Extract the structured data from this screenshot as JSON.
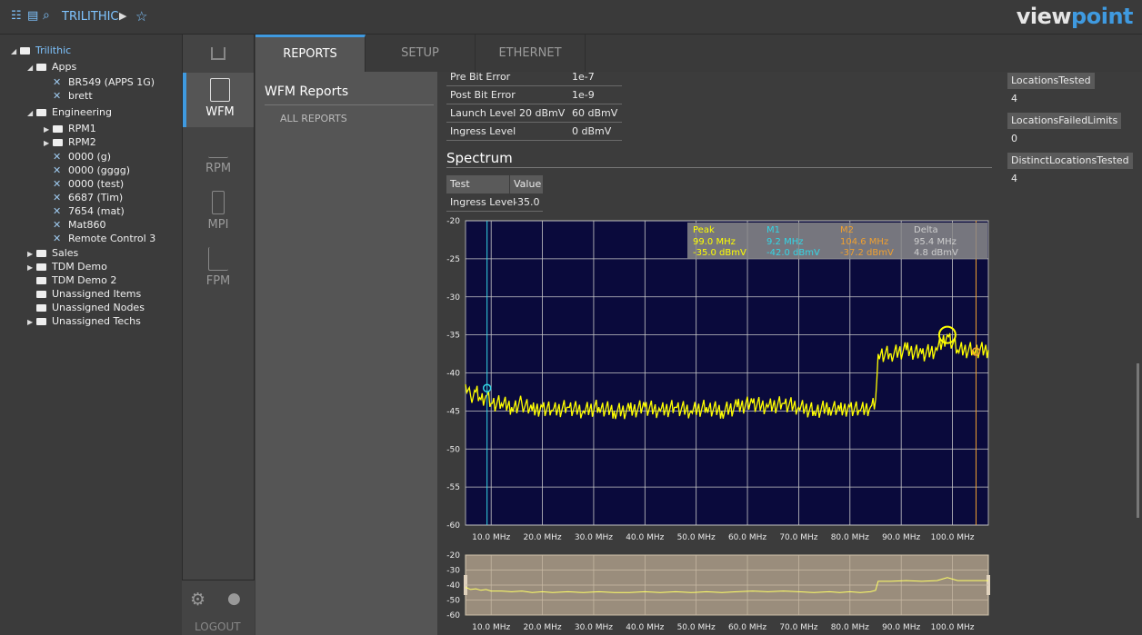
{
  "topbar": {
    "breadcrumb": "TRILITHIC",
    "logo_part1": "view",
    "logo_part2": "point"
  },
  "tree": [
    {
      "label": "Trilithic",
      "depth": 0,
      "type": "folder",
      "expanded": true,
      "selected": true
    },
    {
      "label": "Apps",
      "depth": 1,
      "type": "folder",
      "expanded": true
    },
    {
      "label": "BR549 (APPS 1G)",
      "depth": 2,
      "type": "device"
    },
    {
      "label": "brett",
      "depth": 2,
      "type": "device"
    },
    {
      "label": "Engineering",
      "depth": 1,
      "type": "folder",
      "expanded": true
    },
    {
      "label": "RPM1",
      "depth": 2,
      "type": "folder",
      "expanded": false
    },
    {
      "label": "RPM2",
      "depth": 2,
      "type": "folder",
      "expanded": false
    },
    {
      "label": "0000 (g)",
      "depth": 2,
      "type": "device"
    },
    {
      "label": "0000 (gggg)",
      "depth": 2,
      "type": "device"
    },
    {
      "label": "0000 (test)",
      "depth": 2,
      "type": "device"
    },
    {
      "label": "6687 (Tim)",
      "depth": 2,
      "type": "device"
    },
    {
      "label": "7654 (mat)",
      "depth": 2,
      "type": "device"
    },
    {
      "label": "Mat860",
      "depth": 2,
      "type": "device"
    },
    {
      "label": "Remote Control 3",
      "depth": 2,
      "type": "device"
    },
    {
      "label": "Sales",
      "depth": 1,
      "type": "folder",
      "expanded": false
    },
    {
      "label": "TDM Demo",
      "depth": 1,
      "type": "folder",
      "expanded": false
    },
    {
      "label": "TDM Demo 2",
      "depth": 1,
      "type": "folder",
      "leaf": true
    },
    {
      "label": "Unassigned Items",
      "depth": 1,
      "type": "folder",
      "leaf": true
    },
    {
      "label": "Unassigned Nodes",
      "depth": 1,
      "type": "folder",
      "leaf": true
    },
    {
      "label": "Unassigned Techs",
      "depth": 1,
      "type": "folder",
      "expanded": false
    }
  ],
  "sidenav": {
    "items": [
      "WFM",
      "RPM",
      "MPI",
      "FPM"
    ],
    "logout": "LOGOUT"
  },
  "tabs": [
    "REPORTS",
    "SETUP",
    "ETHERNET"
  ],
  "reports_panel": {
    "title": "WFM Reports",
    "all_reports": "ALL REPORTS"
  },
  "settings_rows": [
    {
      "name": "Pre Bit Error",
      "min": "",
      "max": "1e-7"
    },
    {
      "name": "Post Bit Error",
      "min": "",
      "max": "1e-9"
    },
    {
      "name": "Launch Level",
      "min": "20 dBmV",
      "max": "60 dBmV"
    },
    {
      "name": "Ingress Level",
      "min": "",
      "max": "0 dBmV"
    }
  ],
  "spectrum": {
    "title": "Spectrum",
    "table_headers": [
      "Test",
      "Value"
    ],
    "table_rows": [
      {
        "test": "Ingress Level",
        "value": "-35.0"
      }
    ]
  },
  "markers": {
    "peak": {
      "title": "Peak",
      "freq": "99.0 MHz",
      "level": "-35.0 dBmV",
      "color": "#ffff00"
    },
    "m1": {
      "title": "M1",
      "freq": "9.2 MHz",
      "level": "-42.0 dBmV",
      "color": "#33d6e6"
    },
    "m2": {
      "title": "M2",
      "freq": "104.6 MHz",
      "level": "-37.2 dBmV",
      "color": "#f0a030"
    },
    "delta": {
      "title": "Delta",
      "freq": "95.4 MHz",
      "level": "4.8 dBmV",
      "color": "#cfcfcf"
    }
  },
  "chart_data": {
    "type": "line",
    "xlim": [
      5,
      107
    ],
    "ylim": [
      -60,
      -20
    ],
    "yticks": [
      "-20",
      "-25",
      "-30",
      "-35",
      "-40",
      "-45",
      "-50",
      "-55",
      "-60"
    ],
    "xticks": [
      "10.0 MHz",
      "20.0 MHz",
      "30.0 MHz",
      "40.0 MHz",
      "50.0 MHz",
      "60.0 MHz",
      "70.0 MHz",
      "80.0 MHz",
      "90.0 MHz",
      "100.0 MHz"
    ],
    "overview_yticks": [
      "-20",
      "-30",
      "-40",
      "-50",
      "-60"
    ],
    "series": [
      {
        "color": "#ffff00",
        "x": [
          5,
          6,
          7,
          8,
          9,
          10,
          12,
          14,
          16,
          18,
          20,
          22,
          25,
          28,
          31,
          34,
          37,
          40,
          43,
          46,
          49,
          52,
          55,
          58,
          61,
          64,
          67,
          70,
          73,
          76,
          78,
          80,
          82,
          84,
          85,
          85.5,
          88,
          91,
          94,
          97,
          99,
          101,
          104,
          107
        ],
        "y": [
          -41.5,
          -43,
          -42.5,
          -43.5,
          -43,
          -44,
          -44,
          -44.5,
          -44,
          -45,
          -44.5,
          -45,
          -44.5,
          -45,
          -44.5,
          -45,
          -45,
          -44.5,
          -45,
          -44.5,
          -45,
          -44.5,
          -45,
          -44.5,
          -44,
          -44.5,
          -44,
          -44.5,
          -45,
          -44.5,
          -45,
          -44.5,
          -45,
          -44.5,
          -43.5,
          -37.5,
          -37.5,
          -37,
          -37.5,
          -37,
          -35,
          -37,
          -37,
          -37
        ]
      }
    ],
    "marker_x": {
      "m1": 9.2,
      "m2": 104.6,
      "peak": 99.0
    },
    "marker_y": {
      "m1": -42.0,
      "m2": -37.2,
      "peak": -35.0
    }
  },
  "right_panel": [
    {
      "label": "LocationsTested",
      "value": "4"
    },
    {
      "label": "LocationsFailedLimits",
      "value": "0"
    },
    {
      "label": "DistinctLocationsTested",
      "value": "4"
    }
  ]
}
